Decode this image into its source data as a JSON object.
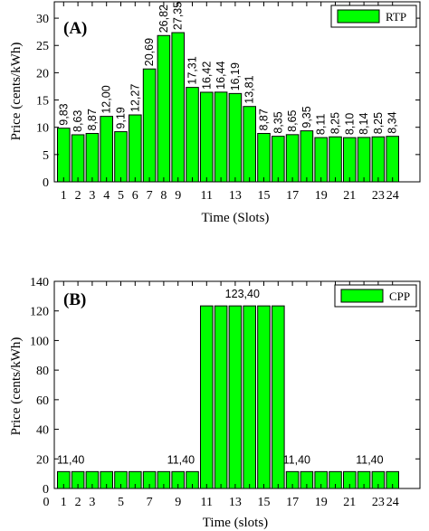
{
  "colors": {
    "bar": "#00ff00",
    "edge": "#000000"
  },
  "chart_data": [
    {
      "type": "bar",
      "panel_label": "(A)",
      "legend": "RTP",
      "xlabel": "Time (Slots)",
      "ylabel": "Price (cents/kWh)",
      "ylim": [
        0,
        33
      ],
      "yticks": [
        0,
        5,
        10,
        15,
        20,
        25,
        30
      ],
      "xticks": [
        "1",
        "2",
        "3",
        "4",
        "5",
        "6",
        "7",
        "8",
        "9",
        "11",
        "13",
        "15",
        "17",
        "19",
        "21",
        "23",
        "24"
      ],
      "categories": [
        "1",
        "2",
        "3",
        "4",
        "5",
        "6",
        "7",
        "8",
        "9",
        "10",
        "11",
        "12",
        "13",
        "14",
        "15",
        "16",
        "17",
        "18",
        "19",
        "20",
        "21",
        "22",
        "23",
        "24"
      ],
      "values": [
        9.83,
        8.63,
        8.87,
        12.0,
        9.19,
        12.27,
        20.69,
        26.82,
        27.35,
        17.31,
        16.42,
        16.44,
        16.19,
        13.81,
        8.87,
        8.35,
        8.65,
        9.35,
        8.11,
        8.25,
        8.1,
        8.14,
        8.25,
        8.34
      ],
      "data_labels": [
        "9,83",
        "8,63",
        "8,87",
        "12,00",
        "9,19",
        "12,27",
        "20,69",
        "26,82",
        "27,35",
        "17,31",
        "16,42",
        "16,44",
        "16,19",
        "13,81",
        "8,87",
        "8,35",
        "8,65",
        "9,35",
        "8,11",
        "8,25",
        "8,10",
        "8,14",
        "8,25",
        "8,34"
      ]
    },
    {
      "type": "bar",
      "panel_label": "(B)",
      "legend": "CPP",
      "xlabel": "Time (slots)",
      "ylabel": "Price (cents/kWh)",
      "ylim": [
        0,
        140
      ],
      "yticks": [
        0,
        20,
        40,
        60,
        80,
        100,
        120,
        140
      ],
      "xticks": [
        "0",
        "1",
        "2",
        "3",
        "5",
        "7",
        "9",
        "11",
        "13",
        "15",
        "17",
        "19",
        "21",
        "23",
        "24"
      ],
      "categories": [
        "1",
        "2",
        "3",
        "4",
        "5",
        "6",
        "7",
        "8",
        "9",
        "10",
        "11",
        "12",
        "13",
        "14",
        "15",
        "16",
        "17",
        "18",
        "19",
        "20",
        "21",
        "22",
        "23",
        "24"
      ],
      "values": [
        11.4,
        11.4,
        11.4,
        11.4,
        11.4,
        11.4,
        11.4,
        11.4,
        11.4,
        11.4,
        123.4,
        123.4,
        123.4,
        123.4,
        123.4,
        123.4,
        11.4,
        11.4,
        11.4,
        11.4,
        11.4,
        11.4,
        11.4,
        11.4
      ],
      "annotations": [
        "11,40",
        "11,40",
        "123,40",
        "11,40",
        "11,40"
      ]
    }
  ]
}
